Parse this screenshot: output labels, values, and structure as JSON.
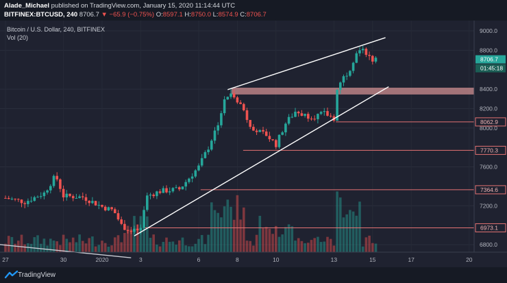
{
  "header": {
    "author": "Alade_Michael",
    "published": "published on TradingView.com, January 15, 2020 11:14:44 UTC",
    "symbol": "BITFINEX:BTCUSD, 240",
    "last": "8706.7",
    "change": "−65.9 (−0.75%)",
    "o_label": "O:",
    "o_value": "8597.1",
    "h_label": "H:",
    "h_value": "8750.0",
    "l_label": "L:",
    "l_value": "8574.9",
    "c_label": "C:",
    "c_value": "8706.7"
  },
  "legend": {
    "title": "Bitcoin / U.S. Dollar, 240, BITFINEX",
    "volume": "Vol (20)"
  },
  "footer": {
    "brand": "TradingView"
  },
  "colors": {
    "background": "#1f2230",
    "up": "#26a69a",
    "down": "#ef5350",
    "level_line": "#e57373",
    "resistance_zone": "#e9a0a0"
  },
  "chart_data": {
    "type": "candlestick",
    "y_ticks": [
      "9000.0",
      "8800.0",
      "8400.0",
      "8200.0",
      "8000.0",
      "7600.0",
      "7200.0",
      "6800.0"
    ],
    "x_ticks": [
      "27",
      "30",
      "2020",
      "3",
      "6",
      "8",
      "10",
      "13",
      "15",
      "17",
      "20"
    ],
    "price_badges": [
      {
        "label": "8706.7",
        "price": 8706.7,
        "kind": "last"
      },
      {
        "label": "01:45:18",
        "price": 8615,
        "kind": "countdown"
      }
    ],
    "levels": [
      {
        "label": "8062.9",
        "price": 8062.9
      },
      {
        "label": "7770.3",
        "price": 7770.3
      },
      {
        "label": "7364.6",
        "price": 7364.6
      },
      {
        "label": "6973.1",
        "price": 6973.1
      }
    ],
    "resistance_zone": {
      "from": 8345,
      "to": 8415
    },
    "trendlines": [
      {
        "from": [
          "2020-01-07 12:00",
          8395
        ],
        "to": [
          "2020-01-15 16:00",
          8930
        ]
      },
      {
        "from": [
          "2020-01-02 16:00",
          6890
        ],
        "to": [
          "2020-01-15 20:00",
          8425
        ]
      },
      {
        "from": [
          "2019-12-26 00:00",
          6815
        ],
        "to": [
          "2020-01-02 12:00",
          6665
        ]
      }
    ],
    "candle_timeframe": "240",
    "price_range": [
      6680,
      9060
    ],
    "series_ohlc_notes": "approximate shape of the 4h BTCUSD move Dec 26 2019 – Jan 15 2020"
  }
}
